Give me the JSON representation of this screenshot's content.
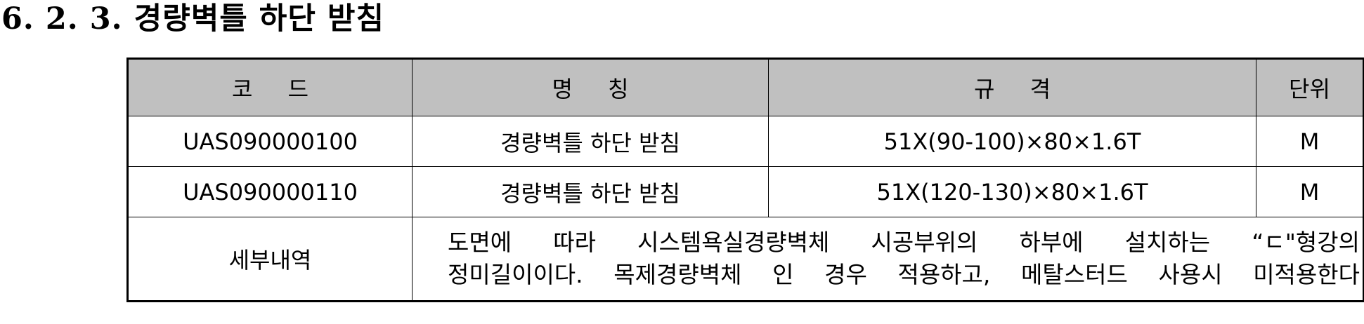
{
  "section": {
    "heading": "6. 2. 3. 경량벽틀 하단 받침"
  },
  "table": {
    "headers": {
      "code": "코 드",
      "name": "명 칭",
      "spec": "규 격",
      "unit": "단위"
    },
    "rows": [
      {
        "code": "UAS090000100",
        "name": "경량벽틀 하단 받침",
        "spec": "51X(90-100)×80×1.6T",
        "unit": "M"
      },
      {
        "code": "UAS090000110",
        "name": "경량벽틀 하단 받침",
        "spec": "51X(120-130)×80×1.6T",
        "unit": "M"
      }
    ],
    "detail": {
      "label": "세부내역",
      "line1": "도면에 따라 시스템욕실경량벽체 시공부위의 하부에 설치하는 “ㄷ\"형강의",
      "line2": "정미길이이다. 목제경량벽체 인 경우 적용하고, 메탈스터드 사용시 미적용한다"
    }
  }
}
